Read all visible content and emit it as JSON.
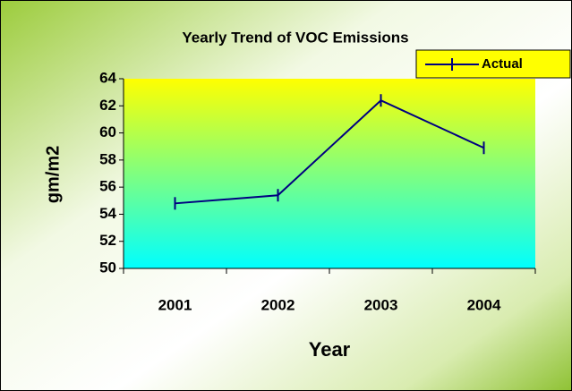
{
  "chart_data": {
    "type": "line",
    "title": "Yearly Trend of VOC Emissions",
    "x_label": "Year",
    "y_label": "gm/m2",
    "categories": [
      "2001",
      "2002",
      "2003",
      "2004"
    ],
    "series": [
      {
        "name": "Actual",
        "color": "#000080",
        "values": [
          54.8,
          55.4,
          62.4,
          58.9
        ]
      }
    ],
    "ylim": [
      50,
      64
    ],
    "yticks": [
      50,
      52,
      54,
      56,
      58,
      60,
      62,
      64
    ],
    "legend": "top-right",
    "grid": false
  }
}
